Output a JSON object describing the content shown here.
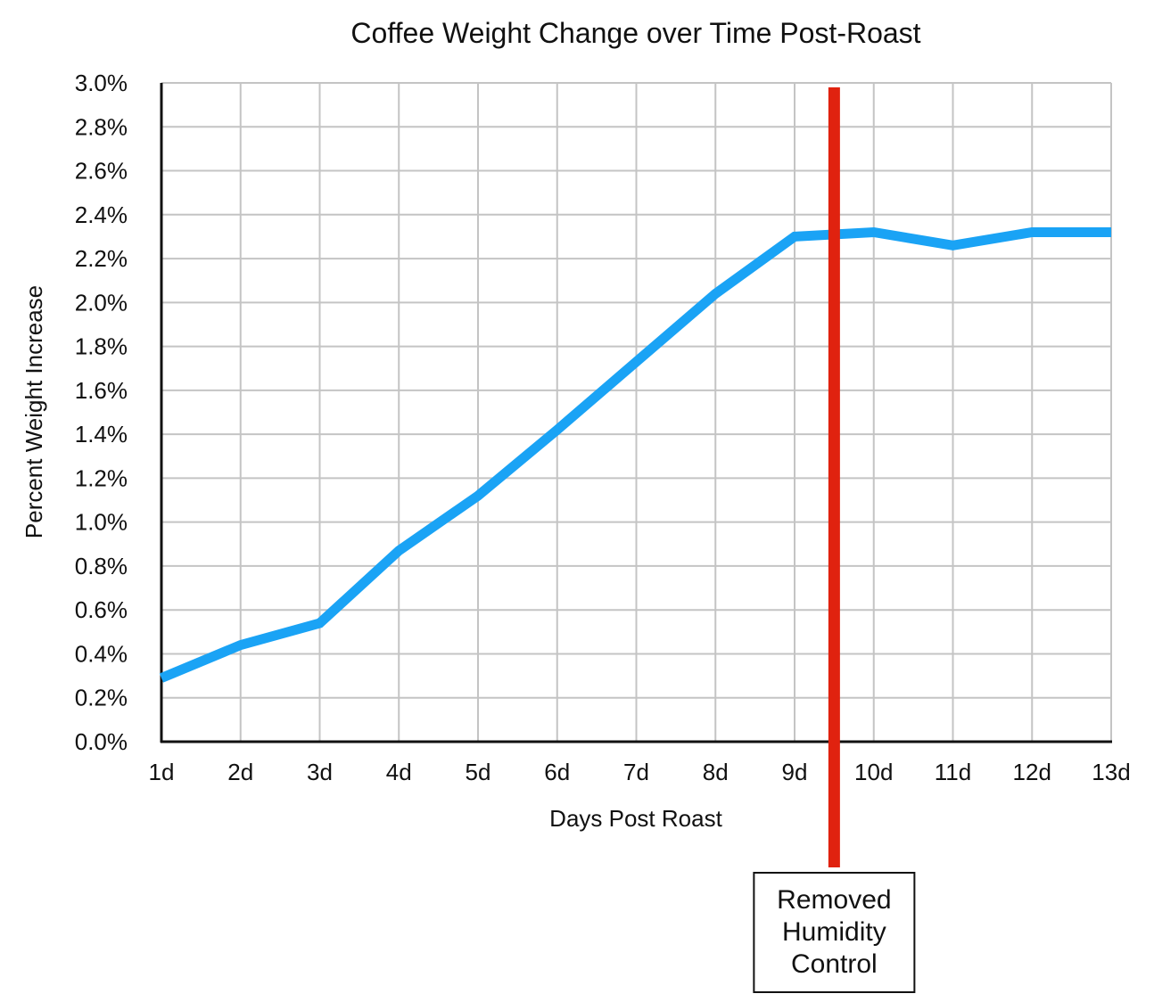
{
  "chart_data": {
    "type": "line",
    "title": "Coffee Weight Change over Time Post-Roast",
    "xlabel": "Days Post Roast",
    "ylabel": "Percent Weight Increase",
    "categories": [
      "1d",
      "2d",
      "3d",
      "4d",
      "5d",
      "6d",
      "7d",
      "8d",
      "9d",
      "10d",
      "11d",
      "12d",
      "13d"
    ],
    "y_ticks": [
      "0.0%",
      "0.2%",
      "0.4%",
      "0.6%",
      "0.8%",
      "1.0%",
      "1.2%",
      "1.4%",
      "1.6%",
      "1.8%",
      "2.0%",
      "2.2%",
      "2.4%",
      "2.6%",
      "2.8%",
      "3.0%"
    ],
    "ylim": [
      0,
      3.0
    ],
    "y_unit": "%",
    "grid": true,
    "legend": "none",
    "series": [
      {
        "values": [
          0.29,
          0.44,
          0.54,
          0.87,
          1.12,
          1.42,
          1.73,
          2.04,
          2.3,
          2.32,
          2.26,
          2.32,
          2.32
        ],
        "color": "#1aa3f5"
      }
    ],
    "annotations": [
      {
        "type": "vertical-line",
        "x": 9.5,
        "color": "#e0220f",
        "lines": [
          "Removed",
          "Humidity",
          "Control"
        ]
      }
    ]
  }
}
